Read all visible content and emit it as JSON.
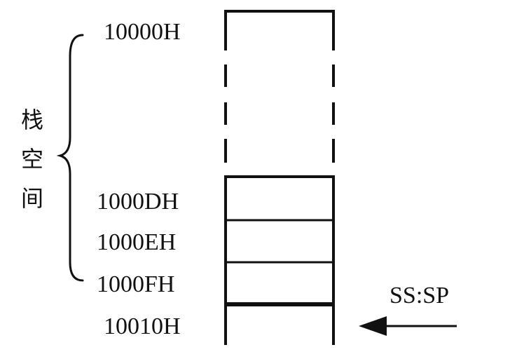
{
  "diagram": {
    "addresses": {
      "top": "10000H",
      "row1": "1000DH",
      "row2": "1000EH",
      "row3": "1000FH",
      "bottom": "10010H"
    },
    "stack_label": [
      "栈",
      "空",
      "间"
    ],
    "pointer_label": "SS:SP",
    "colors": {
      "stroke": "#111111",
      "background": "#ffffff"
    }
  }
}
